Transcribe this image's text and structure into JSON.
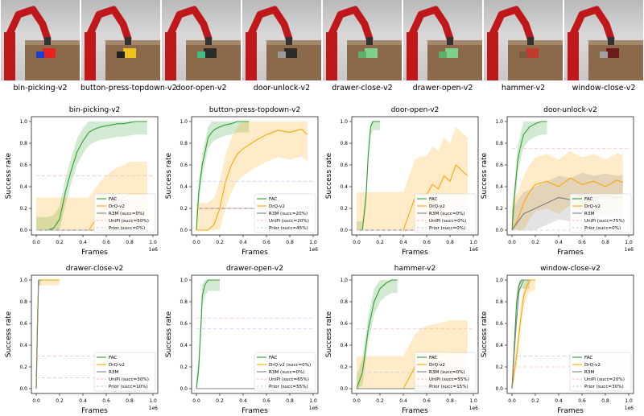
{
  "tasks": [
    {
      "label": "bin-picking-v2",
      "object_color": "#e8221c",
      "object2_color": "#1b3fd6"
    },
    {
      "label": "button-press-topdown-v2",
      "object_color": "#f2c21a",
      "object2_color": "#222222"
    },
    {
      "label": "door-open-v2",
      "object_color": "#2b2b2b",
      "object2_color": "#3fbf7f"
    },
    {
      "label": "door-unlock-v2",
      "object_color": "#2b2b2b",
      "object2_color": "#9a9a9a"
    },
    {
      "label": "drawer-close-v2",
      "object_color": "#7fd18a",
      "object2_color": "#5fb06a"
    },
    {
      "label": "drawer-open-v2",
      "object_color": "#7fd18a",
      "object2_color": "#5fb06a"
    },
    {
      "label": "hammer-v2",
      "object_color": "#c23a2a",
      "object2_color": "#7a5a3a"
    },
    {
      "label": "window-close-v2",
      "object_color": "#6e1a1a",
      "object2_color": "#a0a0a0"
    }
  ],
  "colors": {
    "FAC": "#2ca02c",
    "DrQ-v2": "#ffa500",
    "R3M": "#808080",
    "UniPi": "#ffb6c1",
    "Prior": "#c8c8f0",
    "robot": "#c0171a",
    "table": "#8a6a4a"
  },
  "axis_labels": {
    "x": "Frames",
    "y": "Success rate",
    "x_offset": "1e6"
  },
  "chart_data": [
    {
      "type": "line",
      "title": "bin-picking-v2",
      "xlabel": "Frames",
      "ylabel": "Success rate",
      "xlim": [
        0,
        1.0
      ],
      "ylim": [
        0,
        1.0
      ],
      "xticks": [
        "0.0",
        "0.2",
        "0.4",
        "0.6",
        "0.8",
        "1.0"
      ],
      "yticks": [
        "0.0",
        "0.2",
        "0.4",
        "0.6",
        "0.8",
        "1.0"
      ],
      "legend_position": "bottom-right",
      "series": [
        {
          "name": "FAC",
          "x": [
            0,
            0.1,
            0.15,
            0.2,
            0.25,
            0.3,
            0.35,
            0.4,
            0.45,
            0.5,
            0.55,
            0.6,
            0.65,
            0.7,
            0.75,
            0.8,
            0.85,
            0.9,
            0.95
          ],
          "y": [
            0,
            0,
            0.02,
            0.1,
            0.35,
            0.55,
            0.72,
            0.82,
            0.9,
            0.93,
            0.95,
            0.96,
            0.97,
            0.98,
            0.98,
            0.99,
            1.0,
            1.0,
            1.0
          ],
          "band": 0.12
        },
        {
          "name": "DrQ-v2",
          "x": [
            0,
            0.45,
            0.5,
            0.55,
            0.6,
            0.65,
            0.7,
            0.75,
            0.8,
            0.85,
            0.9,
            0.95
          ],
          "y": [
            0,
            0,
            0.08,
            0.15,
            0.2,
            0.25,
            0.28,
            0.3,
            0.33,
            0.33,
            0.33,
            0.33
          ],
          "band": 0.3
        },
        {
          "name": "R3M (succ=0%)",
          "x": [
            0,
            1.0
          ],
          "y": [
            0,
            0
          ],
          "band": 0
        },
        {
          "name": "UniPi (succ=50%)",
          "x": [
            0,
            1.0
          ],
          "y": [
            0.5,
            0.5
          ],
          "band": 0,
          "dashed": true
        },
        {
          "name": "Prior (succ=0%)",
          "x": [
            0,
            1.0
          ],
          "y": [
            0,
            0
          ],
          "band": 0,
          "dashed": true
        }
      ]
    },
    {
      "type": "line",
      "title": "button-press-topdown-v2",
      "xlabel": "Frames",
      "ylabel": "Success rate",
      "xlim": [
        0,
        1.0
      ],
      "ylim": [
        0,
        1.0
      ],
      "xticks": [
        "0.0",
        "0.2",
        "0.4",
        "0.6",
        "0.8",
        "1.0"
      ],
      "yticks": [
        "0.0",
        "0.2",
        "0.4",
        "0.6",
        "0.8",
        "1.0"
      ],
      "legend_position": "bottom-right",
      "series": [
        {
          "name": "FAC",
          "x": [
            0,
            0.02,
            0.05,
            0.08,
            0.1,
            0.13,
            0.16,
            0.2,
            0.25,
            0.3,
            0.35,
            0.4,
            0.45
          ],
          "y": [
            0,
            0.35,
            0.6,
            0.75,
            0.85,
            0.9,
            0.93,
            0.95,
            0.97,
            0.98,
            1.0,
            1.0,
            1.0
          ],
          "band": 0.1
        },
        {
          "name": "DrQ-v2",
          "x": [
            0,
            0.1,
            0.15,
            0.2,
            0.25,
            0.3,
            0.35,
            0.4,
            0.5,
            0.6,
            0.7,
            0.8,
            0.9,
            0.95
          ],
          "y": [
            0,
            0,
            0.05,
            0.2,
            0.45,
            0.6,
            0.7,
            0.75,
            0.82,
            0.88,
            0.92,
            0.9,
            0.93,
            0.88
          ],
          "band": 0.25
        },
        {
          "name": "R3M (succ=20%)",
          "x": [
            0,
            1.0
          ],
          "y": [
            0.2,
            0.2
          ],
          "band": 0
        },
        {
          "name": "UniPi (succ=20%)",
          "x": [
            0,
            1.0
          ],
          "y": [
            0.2,
            0.2
          ],
          "band": 0,
          "dashed": true
        },
        {
          "name": "Prior (succ=45%)",
          "x": [
            0,
            1.0
          ],
          "y": [
            0.45,
            0.45
          ],
          "band": 0,
          "dashed": true
        }
      ]
    },
    {
      "type": "line",
      "title": "door-open-v2",
      "xlabel": "Frames",
      "ylabel": "Success rate",
      "xlim": [
        0,
        1.0
      ],
      "ylim": [
        0,
        1.0
      ],
      "xticks": [
        "0.0",
        "0.2",
        "0.4",
        "0.6",
        "0.8",
        "1.0"
      ],
      "yticks": [
        "0.0",
        "0.2",
        "0.4",
        "0.6",
        "0.8",
        "1.0"
      ],
      "legend_position": "bottom-right",
      "series": [
        {
          "name": "FAC",
          "x": [
            0,
            0.05,
            0.08,
            0.1,
            0.12,
            0.14,
            0.16,
            0.2
          ],
          "y": [
            0,
            0,
            0.3,
            0.7,
            0.95,
            1.0,
            1.0,
            1.0
          ],
          "band": 0.08
        },
        {
          "name": "DrQ-v2",
          "x": [
            0,
            0.4,
            0.45,
            0.5,
            0.55,
            0.6,
            0.65,
            0.7,
            0.75,
            0.8,
            0.85,
            0.9,
            0.95
          ],
          "y": [
            0,
            0,
            0.15,
            0.3,
            0.33,
            0.33,
            0.42,
            0.38,
            0.5,
            0.45,
            0.6,
            0.55,
            0.5
          ],
          "band": 0.35
        },
        {
          "name": "R3M (succ=0%)",
          "x": [
            0,
            1.0
          ],
          "y": [
            0,
            0
          ],
          "band": 0
        },
        {
          "name": "UniPi (succ=0%)",
          "x": [
            0,
            1.0
          ],
          "y": [
            0,
            0
          ],
          "band": 0,
          "dashed": true
        },
        {
          "name": "Prior (succ=0%)",
          "x": [
            0,
            1.0
          ],
          "y": [
            0,
            0
          ],
          "band": 0,
          "dashed": true
        }
      ]
    },
    {
      "type": "line",
      "title": "door-unlock-v2",
      "xlabel": "Frames",
      "ylabel": "Success rate",
      "xlim": [
        0,
        1.0
      ],
      "ylim": [
        0,
        1.0
      ],
      "xticks": [
        "0.0",
        "0.2",
        "0.4",
        "0.6",
        "0.8",
        "1.0"
      ],
      "yticks": [
        "0.0",
        "0.2",
        "0.4",
        "0.6",
        "0.8",
        "1.0"
      ],
      "legend_position": "bottom-right",
      "series": [
        {
          "name": "FAC",
          "x": [
            0,
            0.02,
            0.05,
            0.08,
            0.1,
            0.15,
            0.2,
            0.25,
            0.3
          ],
          "y": [
            0,
            0.3,
            0.65,
            0.8,
            0.88,
            0.95,
            0.98,
            1.0,
            1.0
          ],
          "band": 0.12
        },
        {
          "name": "DrQ-v2",
          "x": [
            0,
            0.05,
            0.1,
            0.15,
            0.2,
            0.3,
            0.4,
            0.5,
            0.6,
            0.7,
            0.8,
            0.9,
            0.95
          ],
          "y": [
            0,
            0.1,
            0.25,
            0.35,
            0.42,
            0.45,
            0.4,
            0.48,
            0.42,
            0.45,
            0.4,
            0.46,
            0.44
          ],
          "band": 0.25
        },
        {
          "name": "R3M",
          "x": [
            0,
            0.1,
            0.2,
            0.3,
            0.4,
            0.5,
            0.6,
            0.7,
            0.8,
            0.9,
            0.95
          ],
          "y": [
            0,
            0.15,
            0.2,
            0.25,
            0.3,
            0.28,
            0.33,
            0.3,
            0.32,
            0.3,
            0.31
          ],
          "band": 0.2
        },
        {
          "name": "UniPi (succ=75%)",
          "x": [
            0,
            1.0
          ],
          "y": [
            0.75,
            0.75
          ],
          "band": 0,
          "dashed": true
        },
        {
          "name": "Prior (succ=0%)",
          "x": [
            0,
            1.0
          ],
          "y": [
            0,
            0
          ],
          "band": 0,
          "dashed": true
        }
      ]
    },
    {
      "type": "line",
      "title": "drawer-close-v2",
      "xlabel": "Frames",
      "ylabel": "Success rate",
      "xlim": [
        0,
        1.0
      ],
      "ylim": [
        0,
        1.0
      ],
      "xticks": [
        "0.0",
        "0.2",
        "0.4",
        "0.6",
        "0.8",
        "1.0"
      ],
      "yticks": [
        "0.0",
        "0.2",
        "0.4",
        "0.6",
        "0.8",
        "1.0"
      ],
      "legend_position": "bottom-right",
      "series": [
        {
          "name": "FAC",
          "x": [
            0,
            0.01,
            0.02,
            0.04
          ],
          "y": [
            0,
            0.6,
            1.0,
            1.0
          ],
          "band": 0.05
        },
        {
          "name": "DrQ-v2",
          "x": [
            0,
            0.01,
            0.02,
            0.05,
            0.1,
            0.2
          ],
          "y": [
            0,
            0.6,
            1.0,
            1.0,
            1.0,
            1.0
          ],
          "band": 0.05
        },
        {
          "name": "R3M",
          "x": [
            0,
            0.01,
            0.02,
            0.05
          ],
          "y": [
            0,
            0.5,
            1.0,
            1.0
          ],
          "band": 0
        },
        {
          "name": "UniPi (succ=30%)",
          "x": [
            0,
            1.0
          ],
          "y": [
            0.3,
            0.3
          ],
          "band": 0,
          "dashed": true
        },
        {
          "name": "Prior (succ=10%)",
          "x": [
            0,
            1.0
          ],
          "y": [
            0.1,
            0.1
          ],
          "band": 0,
          "dashed": true
        }
      ]
    },
    {
      "type": "line",
      "title": "drawer-open-v2",
      "xlabel": "Frames",
      "ylabel": "Success rate",
      "xlim": [
        0,
        1.0
      ],
      "ylim": [
        0,
        1.0
      ],
      "xticks": [
        "0.0",
        "0.2",
        "0.4",
        "0.6",
        "0.8",
        "1.0"
      ],
      "yticks": [
        "0.0",
        "0.2",
        "0.4",
        "0.6",
        "0.8",
        "1.0"
      ],
      "legend_position": "bottom-right",
      "series": [
        {
          "name": "FAC",
          "x": [
            0,
            0.02,
            0.04,
            0.05,
            0.07,
            0.1,
            0.15,
            0.2
          ],
          "y": [
            0,
            0.2,
            0.6,
            0.85,
            0.95,
            1.0,
            1.0,
            1.0
          ],
          "band": 0.1
        },
        {
          "name": "DrQ-v2 (succ=0%)",
          "x": [
            0,
            1.0
          ],
          "y": [
            0,
            0
          ],
          "band": 0
        },
        {
          "name": "R3M (succ=0%)",
          "x": [
            0,
            1.0
          ],
          "y": [
            0,
            0
          ],
          "band": 0
        },
        {
          "name": "UniPi (succ=65%)",
          "x": [
            0,
            1.0
          ],
          "y": [
            0.65,
            0.65
          ],
          "band": 0,
          "dashed": true
        },
        {
          "name": "Prior (succ=55%)",
          "x": [
            0,
            1.0
          ],
          "y": [
            0.55,
            0.55
          ],
          "band": 0,
          "dashed": true
        }
      ]
    },
    {
      "type": "line",
      "title": "hammer-v2",
      "xlabel": "Frames",
      "ylabel": "Success rate",
      "xlim": [
        0,
        1.0
      ],
      "ylim": [
        0,
        1.0
      ],
      "xticks": [
        "0.0",
        "0.2",
        "0.4",
        "0.6",
        "0.8",
        "1.0"
      ],
      "yticks": [
        "0.0",
        "0.2",
        "0.4",
        "0.6",
        "0.8",
        "1.0"
      ],
      "legend_position": "bottom-right",
      "series": [
        {
          "name": "FAC",
          "x": [
            0,
            0.05,
            0.1,
            0.15,
            0.2,
            0.25,
            0.3,
            0.35
          ],
          "y": [
            0,
            0.15,
            0.55,
            0.8,
            0.92,
            0.97,
            1.0,
            1.0
          ],
          "band": 0.12
        },
        {
          "name": "DrQ-v2",
          "x": [
            0,
            0.4,
            0.45,
            0.5,
            0.55,
            0.6,
            0.7,
            0.8,
            0.9,
            0.95
          ],
          "y": [
            0,
            0,
            0.1,
            0.2,
            0.25,
            0.28,
            0.3,
            0.33,
            0.33,
            0.33
          ],
          "band": 0.3
        },
        {
          "name": "R3M (succ=0%)",
          "x": [
            0,
            1.0
          ],
          "y": [
            0,
            0
          ],
          "band": 0
        },
        {
          "name": "UniPi (succ=55%)",
          "x": [
            0,
            1.0
          ],
          "y": [
            0.55,
            0.55
          ],
          "band": 0,
          "dashed": true
        },
        {
          "name": "Prior (succ=15%)",
          "x": [
            0,
            1.0
          ],
          "y": [
            0.15,
            0.15
          ],
          "band": 0,
          "dashed": true
        }
      ]
    },
    {
      "type": "line",
      "title": "window-close-v2",
      "xlabel": "Frames",
      "ylabel": "Success rate",
      "xlim": [
        0,
        1.0
      ],
      "ylim": [
        0,
        1.0
      ],
      "xticks": [
        "0.0",
        "0.2",
        "0.4",
        "0.6",
        "0.8",
        "1.0"
      ],
      "yticks": [
        "0.0",
        "0.2",
        "0.4",
        "0.6",
        "0.8",
        "1.0"
      ],
      "legend_position": "bottom-right",
      "series": [
        {
          "name": "FAC",
          "x": [
            0,
            0.02,
            0.04,
            0.06,
            0.08,
            0.1,
            0.15
          ],
          "y": [
            0,
            0.4,
            0.8,
            0.95,
            1.0,
            1.0,
            1.0
          ],
          "band": 0.08
        },
        {
          "name": "DrQ-v2",
          "x": [
            0,
            0.04,
            0.07,
            0.1,
            0.13,
            0.16,
            0.2
          ],
          "y": [
            0,
            0.3,
            0.6,
            0.85,
            0.95,
            1.0,
            1.0
          ],
          "band": 0.1
        },
        {
          "name": "R3M",
          "x": [
            0,
            0.03,
            0.06,
            0.1,
            0.15
          ],
          "y": [
            0,
            0.5,
            0.9,
            1.0,
            1.0
          ],
          "band": 0
        },
        {
          "name": "UniPi (succ=20%)",
          "x": [
            0,
            1.0
          ],
          "y": [
            0.2,
            0.2
          ],
          "band": 0,
          "dashed": true
        },
        {
          "name": "Prior (succ=30%)",
          "x": [
            0,
            1.0
          ],
          "y": [
            0.3,
            0.3
          ],
          "band": 0,
          "dashed": true
        }
      ]
    }
  ]
}
